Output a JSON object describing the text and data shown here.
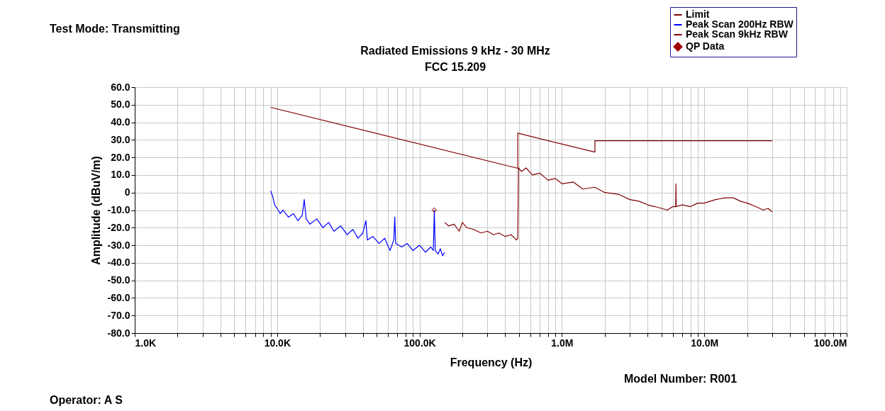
{
  "chart_data": {
    "type": "line",
    "title": "Radiated Emissions 9 kHz - 30 MHz",
    "subtitle": "FCC 15.209",
    "xlabel": "Frequency (Hz)",
    "ylabel": "Amplitude (dBuV/m)",
    "annotations": [
      "Test Mode: Transmitting",
      "Model Number: R001",
      "Operator: A S"
    ],
    "log": "x",
    "grid": true,
    "legend": "top right",
    "line_style": "solid",
    "xlim": [
      1000,
      100000000
    ],
    "ylim": [
      -80,
      60
    ],
    "xticks": [
      {
        "value": 1000,
        "label": "1.0K"
      },
      {
        "value": 2000,
        "label": null
      },
      {
        "value": 3000,
        "label": null
      },
      {
        "value": 4000,
        "label": null
      },
      {
        "value": 5000,
        "label": null
      },
      {
        "value": 6000,
        "label": null
      },
      {
        "value": 7000,
        "label": null
      },
      {
        "value": 8000,
        "label": null
      },
      {
        "value": 9000,
        "label": null
      },
      {
        "value": 10000,
        "label": "10.0K"
      },
      {
        "value": 20000,
        "label": null
      },
      {
        "value": 30000,
        "label": null
      },
      {
        "value": 40000,
        "label": null
      },
      {
        "value": 50000,
        "label": null
      },
      {
        "value": 60000,
        "label": null
      },
      {
        "value": 70000,
        "label": null
      },
      {
        "value": 80000,
        "label": null
      },
      {
        "value": 90000,
        "label": null
      },
      {
        "value": 100000,
        "label": "100.0K"
      },
      {
        "value": 200000,
        "label": null
      },
      {
        "value": 300000,
        "label": null
      },
      {
        "value": 400000,
        "label": null
      },
      {
        "value": 500000,
        "label": null
      },
      {
        "value": 600000,
        "label": null
      },
      {
        "value": 700000,
        "label": null
      },
      {
        "value": 800000,
        "label": null
      },
      {
        "value": 900000,
        "label": null
      },
      {
        "value": 1000000,
        "label": "1.0M"
      },
      {
        "value": 2000000,
        "label": null
      },
      {
        "value": 3000000,
        "label": null
      },
      {
        "value": 4000000,
        "label": null
      },
      {
        "value": 5000000,
        "label": null
      },
      {
        "value": 6000000,
        "label": null
      },
      {
        "value": 7000000,
        "label": null
      },
      {
        "value": 8000000,
        "label": null
      },
      {
        "value": 9000000,
        "label": null
      },
      {
        "value": 10000000,
        "label": "10.0M"
      },
      {
        "value": 20000000,
        "label": null
      },
      {
        "value": 30000000,
        "label": null
      },
      {
        "value": 40000000,
        "label": null
      },
      {
        "value": 50000000,
        "label": null
      },
      {
        "value": 60000000,
        "label": null
      },
      {
        "value": 70000000,
        "label": null
      },
      {
        "value": 80000000,
        "label": null
      },
      {
        "value": 90000000,
        "label": null
      },
      {
        "value": 100000000,
        "label": "100.0M"
      }
    ],
    "yticks": [
      {
        "value": 60,
        "label": "60.0"
      },
      {
        "value": 50,
        "label": "50.0"
      },
      {
        "value": 40,
        "label": "40.0"
      },
      {
        "value": 30,
        "label": "30.0"
      },
      {
        "value": 20,
        "label": "20.0"
      },
      {
        "value": 10,
        "label": "10.0"
      },
      0,
      {
        "value": -10,
        "label": "-10.0"
      },
      {
        "value": -20,
        "label": "-20.0"
      },
      {
        "value": -30,
        "label": "-30.0"
      },
      {
        "value": -40,
        "label": "-40.0"
      },
      {
        "value": -50,
        "label": "-50.0"
      },
      {
        "value": -60,
        "label": "-60.0"
      },
      {
        "value": -70,
        "label": "-70.0"
      },
      {
        "value": -80,
        "label": "-80.0"
      }
    ],
    "series": [
      {
        "name": "Limit",
        "color": "#800000",
        "x": [
          9000,
          490000,
          490000,
          1705000,
          1705000,
          30000000
        ],
        "values": [
          48.5,
          13.8,
          33.8,
          23.0,
          29.5,
          29.5
        ]
      },
      {
        "name": "Peak Scan 200Hz RBW",
        "color": "#0000ff",
        "x": [
          9000,
          9300,
          9600,
          10000,
          10500,
          11000,
          12000,
          13000,
          14000,
          15000,
          15500,
          16000,
          17000,
          19000,
          21000,
          23000,
          25000,
          28000,
          31000,
          34000,
          37000,
          40000,
          42000,
          43000,
          47000,
          52000,
          57000,
          62000,
          66000,
          67000,
          68000,
          75000,
          82000,
          90000,
          100000,
          110000,
          120000,
          125000,
          127000,
          129000,
          135000,
          140000,
          145000,
          150000
        ],
        "values": [
          1,
          -2,
          -7,
          -9,
          -12,
          -10,
          -14,
          -12,
          -16,
          -13,
          -4,
          -15,
          -18,
          -15,
          -20,
          -17,
          -22,
          -19,
          -24,
          -21,
          -26,
          -23,
          -16,
          -27,
          -25,
          -29,
          -26,
          -33,
          -27,
          -14,
          -29,
          -31,
          -29,
          -33,
          -30,
          -34,
          -31,
          -33,
          -10,
          -33,
          -35,
          -32,
          -36,
          -34
        ]
      },
      {
        "name": "Peak Scan 9kHz RBW",
        "color": "#800000",
        "x": [
          150000,
          160000,
          175000,
          190000,
          200000,
          215000,
          240000,
          270000,
          300000,
          330000,
          360000,
          400000,
          440000,
          480000,
          490000,
          495000,
          520000,
          560000,
          620000,
          700000,
          800000,
          900000,
          1000000,
          1200000,
          1400000,
          1700000,
          2000000,
          2500000,
          3000000,
          3500000,
          4000000,
          4500000,
          5000000,
          5500000,
          6000000,
          6300000,
          6320000,
          6350000,
          7000000,
          8000000,
          9000000,
          10000000,
          12000000,
          14000000,
          16000000,
          18000000,
          20000000,
          23000000,
          26000000,
          28000000,
          30000000
        ],
        "values": [
          -17,
          -19,
          -18,
          -22,
          -17,
          -20,
          -21,
          -23,
          -22,
          -24,
          -23,
          -25,
          -24,
          -27,
          -26,
          14,
          12,
          14,
          10,
          11,
          7,
          8,
          5,
          6,
          2,
          3,
          0,
          -1,
          -4,
          -5,
          -7,
          -8,
          -9,
          -10,
          -8,
          -8,
          5,
          -8,
          -7,
          -8,
          -6,
          -6,
          -4,
          -3,
          -3,
          -5,
          -6,
          -8,
          -10,
          -9,
          -11
        ]
      },
      {
        "name": "QP Data",
        "type": "scatter",
        "marker": "diamond",
        "color": "#a00000",
        "x": [
          127000
        ],
        "values": [
          -10
        ]
      }
    ]
  }
}
